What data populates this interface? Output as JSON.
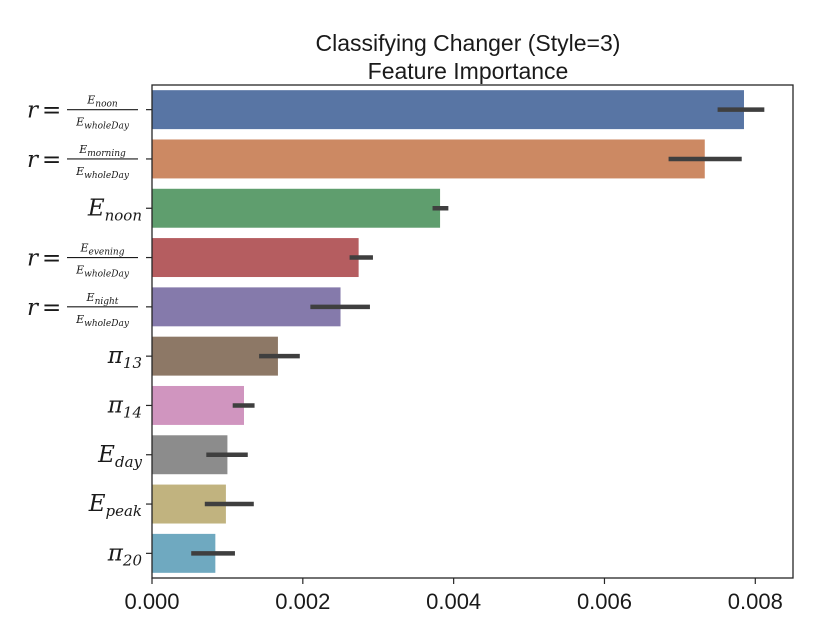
{
  "chart_data": {
    "type": "bar",
    "orientation": "horizontal",
    "title": [
      "Classifying Changer (Style=3)",
      "Feature Importance"
    ],
    "xlabel": "",
    "ylabel": "",
    "xlim": [
      0,
      0.0085
    ],
    "xticks": [
      0.0,
      0.002,
      0.004,
      0.006,
      0.008
    ],
    "xtick_labels": [
      "0.000",
      "0.002",
      "0.004",
      "0.006",
      "0.008"
    ],
    "grid": false,
    "categories": [
      {
        "kind": "ratio",
        "prefix": "r =",
        "num": "E",
        "num_sub": "noon",
        "den": "E",
        "den_sub": "wholeDay"
      },
      {
        "kind": "ratio",
        "prefix": "r =",
        "num": "E",
        "num_sub": "morning",
        "den": "E",
        "den_sub": "wholeDay"
      },
      {
        "kind": "sym",
        "base": "E",
        "sub": "noon"
      },
      {
        "kind": "ratio",
        "prefix": "r =",
        "num": "E",
        "num_sub": "evening",
        "den": "E",
        "den_sub": "wholeDay"
      },
      {
        "kind": "ratio",
        "prefix": "r =",
        "num": "E",
        "num_sub": "night",
        "den": "E",
        "den_sub": "wholeDay"
      },
      {
        "kind": "sym",
        "base": "π",
        "sub": "13"
      },
      {
        "kind": "sym",
        "base": "π",
        "sub": "14"
      },
      {
        "kind": "sym",
        "base": "E",
        "sub": "day"
      },
      {
        "kind": "sym",
        "base": "E",
        "sub": "peak"
      },
      {
        "kind": "sym",
        "base": "π",
        "sub": "20"
      }
    ],
    "values": [
      0.00785,
      0.00733,
      0.00382,
      0.00274,
      0.0025,
      0.00167,
      0.00122,
      0.001,
      0.00098,
      0.00084
    ],
    "error_low": [
      0.0075,
      0.00685,
      0.00372,
      0.00262,
      0.0021,
      0.00142,
      0.00107,
      0.00072,
      0.0007,
      0.00052
    ],
    "error_high": [
      0.00812,
      0.00782,
      0.00393,
      0.00293,
      0.00289,
      0.00196,
      0.00136,
      0.00127,
      0.00135,
      0.0011
    ],
    "colors": [
      "#5875a4",
      "#cc8963",
      "#5f9e6e",
      "#b55d60",
      "#857aab",
      "#8d7866",
      "#d095bf",
      "#8c8c8c",
      "#c1b37f",
      "#6fa9c0"
    ],
    "error_color": "#3f3f3f"
  }
}
